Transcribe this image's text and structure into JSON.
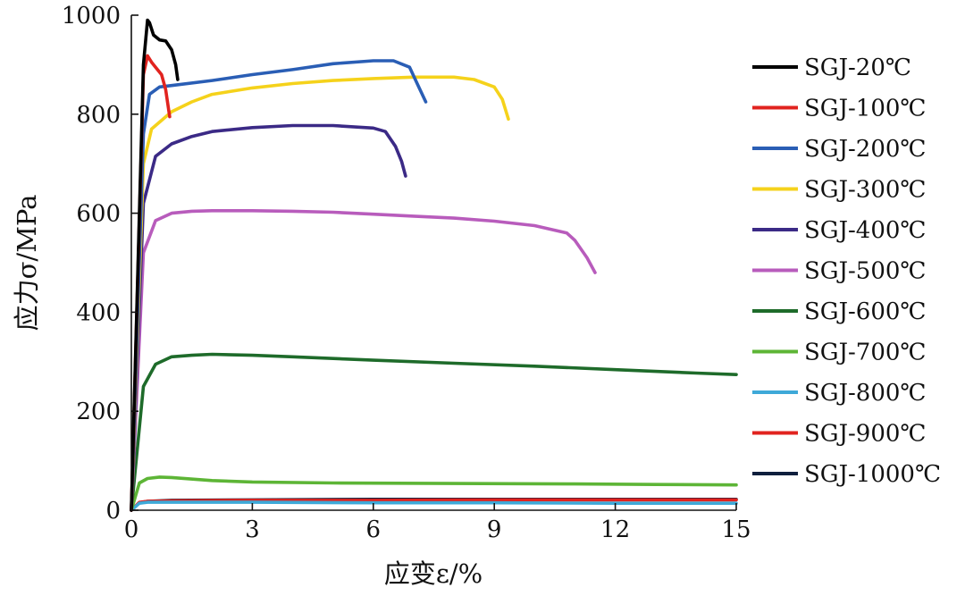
{
  "chart_data": {
    "type": "line",
    "xlabel": "应变ε/%",
    "ylabel": "应力σ/MPa",
    "xlim": [
      0,
      15
    ],
    "ylim": [
      0,
      1000
    ],
    "xticks": [
      0,
      3,
      6,
      9,
      12,
      15
    ],
    "yticks": [
      0,
      200,
      400,
      600,
      800,
      1000
    ],
    "grid": false,
    "legend_position": "right",
    "series": [
      {
        "name": "SGJ-20℃",
        "color": "#000000",
        "x": [
          0,
          0.3,
          0.4,
          0.45,
          0.55,
          0.7,
          0.85,
          1.0,
          1.1,
          1.15
        ],
        "y": [
          0,
          900,
          990,
          985,
          960,
          950,
          948,
          930,
          900,
          870
        ]
      },
      {
        "name": "SGJ-100℃",
        "color": "#e1231f",
        "x": [
          0,
          0.3,
          0.4,
          0.5,
          0.6,
          0.75,
          0.85,
          0.95
        ],
        "y": [
          0,
          880,
          918,
          905,
          895,
          880,
          850,
          795
        ]
      },
      {
        "name": "SGJ-200℃",
        "color": "#2a5eb5",
        "x": [
          0,
          0.3,
          0.45,
          0.7,
          1.0,
          2.0,
          3.0,
          4.0,
          5.0,
          6.0,
          6.5,
          6.9,
          7.1,
          7.3
        ],
        "y": [
          0,
          760,
          840,
          855,
          858,
          868,
          880,
          890,
          902,
          908,
          908,
          895,
          860,
          825
        ]
      },
      {
        "name": "SGJ-300℃",
        "color": "#f5d21b",
        "x": [
          0,
          0.3,
          0.5,
          1.0,
          1.5,
          2.0,
          3.0,
          4.0,
          5.0,
          6.0,
          7.0,
          8.0,
          8.5,
          9.0,
          9.2,
          9.35
        ],
        "y": [
          0,
          700,
          770,
          805,
          825,
          840,
          853,
          862,
          868,
          872,
          875,
          875,
          870,
          855,
          830,
          790
        ]
      },
      {
        "name": "SGJ-400℃",
        "color": "#3b2a86",
        "x": [
          0,
          0.3,
          0.6,
          1.0,
          1.5,
          2.0,
          3.0,
          4.0,
          5.0,
          6.0,
          6.3,
          6.55,
          6.7,
          6.8
        ],
        "y": [
          0,
          620,
          715,
          740,
          755,
          765,
          773,
          777,
          777,
          772,
          765,
          735,
          705,
          675
        ]
      },
      {
        "name": "SGJ-500℃",
        "color": "#b85cbc",
        "x": [
          0,
          0.3,
          0.6,
          1.0,
          1.5,
          2.0,
          3.0,
          4.0,
          5.0,
          6.0,
          7.0,
          8.0,
          9.0,
          10.0,
          10.8,
          11.0,
          11.3,
          11.5
        ],
        "y": [
          0,
          520,
          585,
          600,
          604,
          605,
          605,
          604,
          602,
          598,
          594,
          590,
          584,
          575,
          560,
          545,
          510,
          480
        ]
      },
      {
        "name": "SGJ-600℃",
        "color": "#1e6b2a",
        "x": [
          0,
          0.3,
          0.6,
          1.0,
          1.5,
          2.0,
          3.0,
          4.0,
          6.0,
          8.0,
          10.0,
          12.0,
          14.0,
          15.0
        ],
        "y": [
          0,
          250,
          295,
          310,
          313,
          315,
          313,
          310,
          303,
          297,
          291,
          284,
          277,
          274
        ]
      },
      {
        "name": "SGJ-700℃",
        "color": "#5db536",
        "x": [
          0,
          0.2,
          0.4,
          0.7,
          1.0,
          2.0,
          3.0,
          5.0,
          8.0,
          11.0,
          13.0,
          15.0
        ],
        "y": [
          0,
          55,
          64,
          67,
          66,
          60,
          57,
          55,
          54,
          53,
          52,
          51
        ]
      },
      {
        "name": "SGJ-800℃",
        "color": "#3ea9d8",
        "x": [
          0,
          0.2,
          0.4,
          1.0,
          3.0,
          6.0,
          9.0,
          12.0,
          15.0
        ],
        "y": [
          0,
          14,
          16,
          16,
          16,
          15,
          15,
          14,
          14
        ]
      },
      {
        "name": "SGJ-900℃",
        "color": "#e1231f",
        "x": [
          0,
          0.2,
          0.4,
          1.0,
          3.0,
          6.0,
          9.0,
          12.0,
          15.0
        ],
        "y": [
          0,
          16,
          18,
          19,
          20,
          20,
          21,
          21,
          21
        ]
      },
      {
        "name": "SGJ-1000℃",
        "color": "#0f1f3d",
        "x": [
          0,
          0.2,
          0.4,
          1.0,
          3.0,
          6.0,
          9.0,
          12.0,
          15.0
        ],
        "y": [
          0,
          15,
          18,
          20,
          21,
          22,
          22,
          22,
          22
        ]
      }
    ]
  }
}
